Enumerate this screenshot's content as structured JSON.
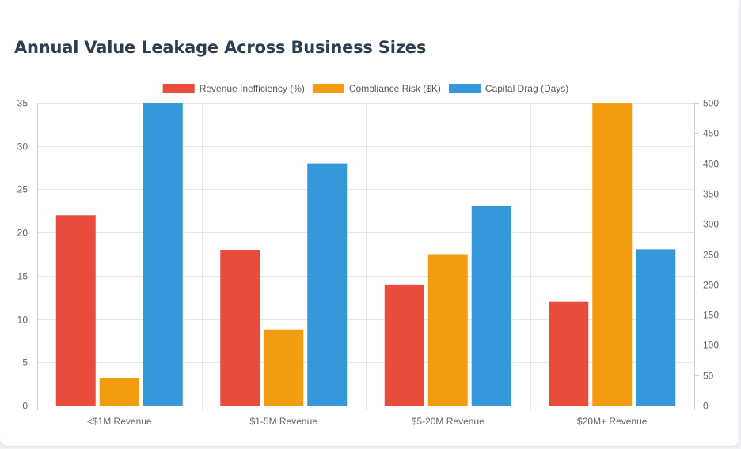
{
  "page": {
    "title": "Annual Value Leakage Across Business Sizes"
  },
  "chart_data": {
    "type": "bar",
    "title": "",
    "categories": [
      "<$1M Revenue",
      "$1-5M Revenue",
      "$5-20M Revenue",
      "$20M+ Revenue"
    ],
    "series": [
      {
        "name": "Revenue Inefficiency (%)",
        "axis": "left",
        "color": "#e74c3c",
        "values": [
          22,
          18,
          14,
          12
        ]
      },
      {
        "name": "Compliance Risk ($K)",
        "axis": "left",
        "color": "#f39c12",
        "values": [
          3.2,
          8.8,
          17.5,
          35
        ]
      },
      {
        "name": "Capital Drag (Days)",
        "axis": "right",
        "color": "#3498db",
        "values": [
          500,
          400,
          330,
          258
        ]
      }
    ],
    "y_left": {
      "min": 0,
      "max": 35,
      "ticks": [
        0,
        5,
        10,
        15,
        20,
        25,
        30,
        35
      ]
    },
    "y_right": {
      "min": 0,
      "max": 500,
      "ticks": [
        0,
        50,
        100,
        150,
        200,
        250,
        300,
        350,
        400,
        450,
        500
      ]
    },
    "grid": true,
    "legend_position": "top"
  }
}
